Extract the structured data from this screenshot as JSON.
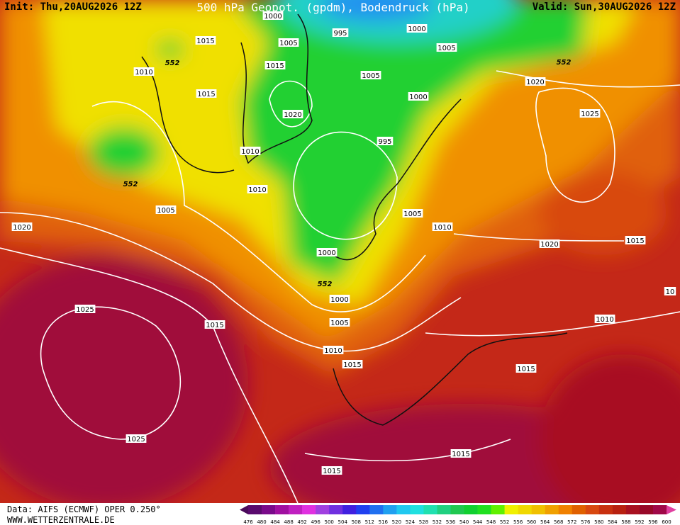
{
  "header": {
    "init": "Init: Thu,20AUG2026 12Z",
    "title": "500 hPa Geopot. (gpdm), Bodendruck (hPa)",
    "valid": "Valid: Sun,30AUG2026 12Z"
  },
  "contour_labels": [
    "1000",
    "995",
    "1000",
    "1005",
    "1005",
    "1015",
    "552",
    "1010",
    "1015",
    "1015",
    "1005",
    "1000",
    "552",
    "1020",
    "1020",
    "1025",
    "995",
    "1010",
    "552",
    "1010",
    "1005",
    "1005",
    "1010",
    "1020",
    "1000",
    "1020",
    "1015",
    "552",
    "1000",
    "1025",
    "1015",
    "1005",
    "1010",
    "1010",
    "1015",
    "1015",
    "1025",
    "1015",
    "1015",
    "10"
  ],
  "legend": {
    "values": [
      476,
      480,
      484,
      488,
      492,
      496,
      500,
      504,
      508,
      512,
      516,
      520,
      524,
      528,
      532,
      536,
      540,
      544,
      548,
      552,
      556,
      560,
      564,
      568,
      572,
      576,
      580,
      584,
      588,
      592,
      596,
      600
    ],
    "colors": [
      "#4a0a5a",
      "#5a0a6e",
      "#7a0a8a",
      "#a010a0",
      "#c020c0",
      "#e030e0",
      "#a040e0",
      "#7030e0",
      "#4020e0",
      "#2040f0",
      "#2070f0",
      "#20a0f0",
      "#20c8f0",
      "#20e0e0",
      "#20e0b0",
      "#20d080",
      "#20c850",
      "#10d030",
      "#20e020",
      "#60f000",
      "#f0f000",
      "#f0d800",
      "#f0c000",
      "#f0a000",
      "#f08000",
      "#e06000",
      "#d84810",
      "#c83010",
      "#b82010",
      "#a81020",
      "#980828",
      "#a00848",
      "#e040a0"
    ]
  },
  "footer": {
    "data": "Data: AIFS (ECMWF) OPER 0.250°",
    "site": "WWW.WETTERZENTRALE.DE"
  }
}
